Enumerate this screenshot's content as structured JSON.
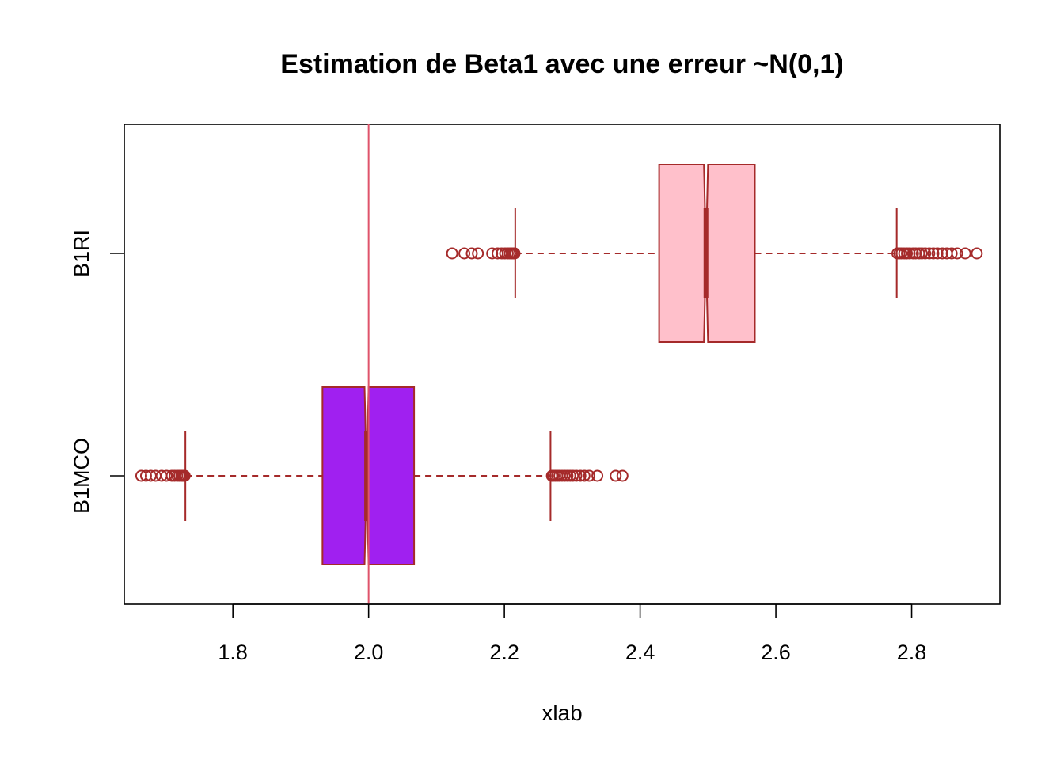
{
  "chart_data": {
    "type": "boxplot",
    "orientation": "horizontal",
    "title": "Estimation de Beta1 avec une erreur ~N(0,1)",
    "xlabel": "xlab",
    "ylabel": "",
    "xlim": [
      1.64,
      2.93
    ],
    "x_ticks": [
      1.8,
      2.0,
      2.2,
      2.4,
      2.6,
      2.8
    ],
    "x_tick_labels": [
      "1.8",
      "2.0",
      "2.2",
      "2.4",
      "2.6",
      "2.8"
    ],
    "notch": true,
    "grid": false,
    "reference_line": {
      "x": 2.0,
      "color": "#DF536B"
    },
    "border_color": "#A52A2A",
    "series": [
      {
        "name": "B1MCO",
        "fill": "#A020F0",
        "whisker_low": 1.73,
        "q1": 1.932,
        "median": 1.997,
        "q3": 2.067,
        "whisker_high": 2.268,
        "notch_low": 1.994,
        "notch_high": 2.0,
        "outliers": [
          1.665,
          1.672,
          1.679,
          1.686,
          1.695,
          1.702,
          1.71,
          1.714,
          1.718,
          1.721,
          1.724,
          1.726,
          1.728,
          1.729,
          2.27,
          2.272,
          2.275,
          2.278,
          2.281,
          2.285,
          2.289,
          2.293,
          2.297,
          2.301,
          2.306,
          2.312,
          2.318,
          2.325,
          2.337,
          2.364,
          2.374
        ]
      },
      {
        "name": "B1RI",
        "fill": "#FFC0CB",
        "whisker_low": 2.216,
        "q1": 2.428,
        "median": 2.497,
        "q3": 2.569,
        "whisker_high": 2.778,
        "notch_low": 2.494,
        "notch_high": 2.5,
        "outliers": [
          2.123,
          2.141,
          2.152,
          2.161,
          2.182,
          2.19,
          2.196,
          2.201,
          2.205,
          2.208,
          2.211,
          2.213,
          2.215,
          2.779,
          2.782,
          2.785,
          2.789,
          2.793,
          2.797,
          2.802,
          2.806,
          2.811,
          2.815,
          2.82,
          2.826,
          2.832,
          2.838,
          2.845,
          2.852,
          2.859,
          2.867,
          2.879,
          2.896
        ]
      }
    ]
  }
}
